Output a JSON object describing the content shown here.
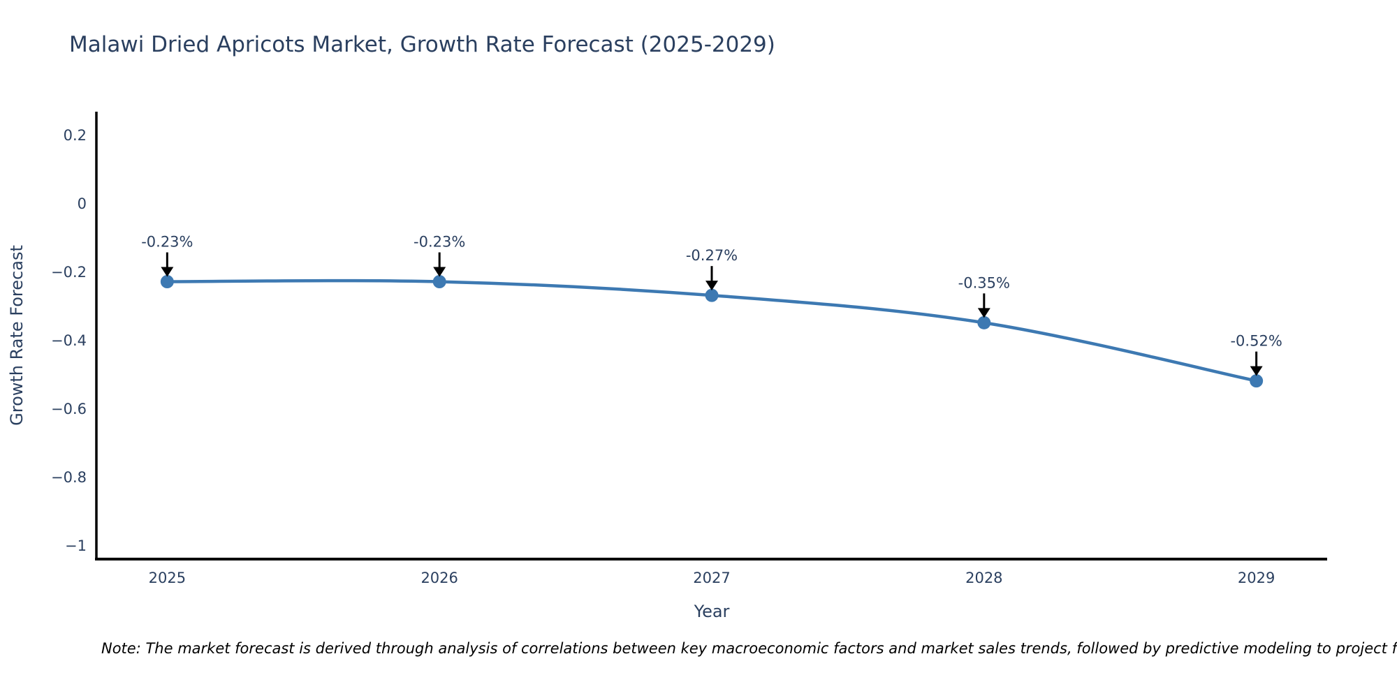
{
  "page": {
    "background": "#ffffff"
  },
  "chart_data": {
    "type": "line",
    "title": "Malawi Dried Apricots Market, Growth Rate Forecast (2025-2029)",
    "xlabel": "Year",
    "ylabel": "Growth Rate Forecast",
    "x": [
      2025,
      2026,
      2027,
      2028,
      2029
    ],
    "y": [
      -0.23,
      -0.23,
      -0.27,
      -0.35,
      -0.52
    ],
    "series": [
      {
        "name": "Growth Rate Forecast",
        "values": [
          -0.23,
          -0.23,
          -0.27,
          -0.35,
          -0.52
        ]
      }
    ],
    "point_labels": [
      "-0.23%",
      "-0.23%",
      "-0.27%",
      "-0.35%",
      "-0.52%"
    ],
    "x_tick_labels": [
      "2025",
      "2026",
      "2027",
      "2028",
      "2029"
    ],
    "y_ticks": [
      0.2,
      0,
      -0.2,
      -0.4,
      -0.6,
      -0.8,
      -1
    ],
    "y_tick_labels": [
      "0.2",
      "0",
      "−0.2",
      "−0.4",
      "−0.6",
      "−0.8",
      "−1"
    ],
    "xlim": [
      2024.74,
      2029.26
    ],
    "ylim": [
      -1.041,
      0.267
    ],
    "grid": false,
    "legend": "none",
    "line_shape": "spline",
    "marker": "circle",
    "colors": {
      "line": "#3d79b2",
      "marker": "#3d79b2",
      "axis": "#000000",
      "text": "#2a3f5f",
      "annotation_arrow": "#000000",
      "note_text": "#000000",
      "background": "#ffffff"
    }
  },
  "note": {
    "text": "Note: The market forecast is derived through analysis of correlations between key macroeconomic factors and market sales trends, followed by predictive modeling to project future sa"
  }
}
